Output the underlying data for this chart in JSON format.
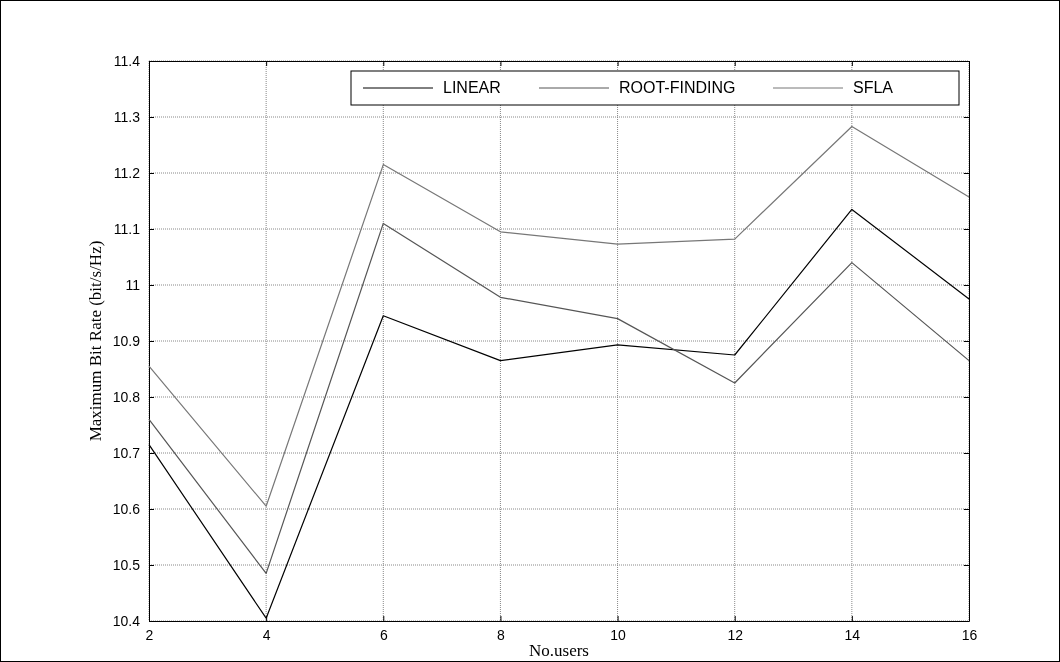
{
  "chart_data": {
    "type": "line",
    "xlabel": "No.users",
    "ylabel": "Maximum Bit Rate (bit/s/Hz)",
    "x": [
      2,
      4,
      6,
      8,
      10,
      12,
      14,
      16
    ],
    "series": [
      {
        "name": "LINEAR",
        "color": "#000000",
        "values": [
          10.715,
          10.405,
          10.945,
          10.865,
          10.893,
          10.875,
          11.135,
          10.975
        ]
      },
      {
        "name": "ROOT-FINDING",
        "color": "#555555",
        "values": [
          10.76,
          10.485,
          11.11,
          10.978,
          10.94,
          10.825,
          11.04,
          10.865
        ]
      },
      {
        "name": "SFLA",
        "color": "#777777",
        "values": [
          10.855,
          10.605,
          11.215,
          11.095,
          11.073,
          11.082,
          11.283,
          11.157
        ]
      }
    ],
    "xlim": [
      2,
      16
    ],
    "xticks": [
      2,
      4,
      6,
      8,
      10,
      12,
      14,
      16
    ],
    "ylim": [
      10.4,
      11.4
    ],
    "yticks": [
      10.4,
      10.5,
      10.6,
      10.7,
      10.8,
      10.9,
      11,
      11.1,
      11.2,
      11.3,
      11.4
    ],
    "grid": true,
    "legend": "top right",
    "line_style": "solid"
  }
}
